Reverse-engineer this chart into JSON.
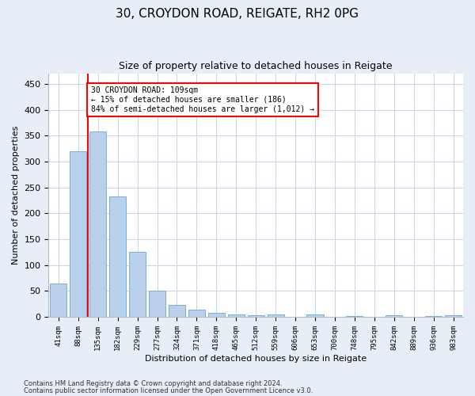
{
  "title1": "30, CROYDON ROAD, REIGATE, RH2 0PG",
  "title2": "Size of property relative to detached houses in Reigate",
  "xlabel": "Distribution of detached houses by size in Reigate",
  "ylabel": "Number of detached properties",
  "categories": [
    "41sqm",
    "88sqm",
    "135sqm",
    "182sqm",
    "229sqm",
    "277sqm",
    "324sqm",
    "371sqm",
    "418sqm",
    "465sqm",
    "512sqm",
    "559sqm",
    "606sqm",
    "653sqm",
    "700sqm",
    "748sqm",
    "795sqm",
    "842sqm",
    "889sqm",
    "936sqm",
    "983sqm"
  ],
  "values": [
    65,
    320,
    358,
    233,
    125,
    50,
    23,
    14,
    8,
    4,
    3,
    4,
    0,
    4,
    0,
    2,
    0,
    3,
    0,
    2,
    3
  ],
  "bar_color": "#b8d0ea",
  "bar_edge_color": "#7aafe0",
  "vline_pos": 1.5,
  "annotation_line1": "30 CROYDON ROAD: 109sqm",
  "annotation_line2": "← 15% of detached houses are smaller (186)",
  "annotation_line3": "84% of semi-detached houses are larger (1,012) →",
  "annotation_box_color": "white",
  "annotation_box_edge": "red",
  "vline_color": "red",
  "yticks": [
    0,
    50,
    100,
    150,
    200,
    250,
    300,
    350,
    400,
    450
  ],
  "ylim": [
    0,
    470
  ],
  "footer1": "Contains HM Land Registry data © Crown copyright and database right 2024.",
  "footer2": "Contains public sector information licensed under the Open Government Licence v3.0.",
  "bg_color": "#e8eef8",
  "plot_bg_color": "#ffffff"
}
